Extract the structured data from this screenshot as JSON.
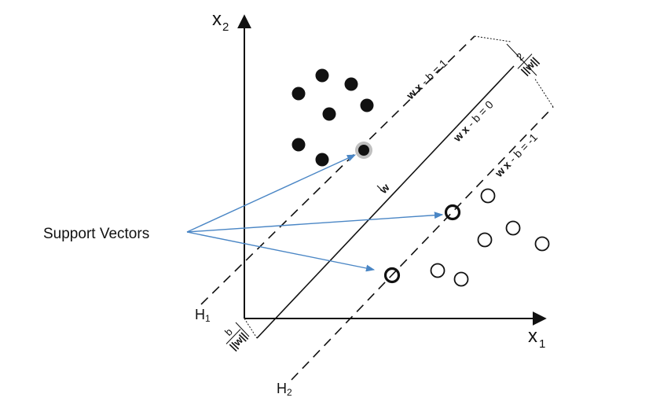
{
  "axes": {
    "x_label": "x",
    "x_sub": "1",
    "y_label": "x",
    "y_sub": "2"
  },
  "hyperplanes": {
    "h1_label": "H",
    "h1_sub": "1",
    "h2_label": "H",
    "h2_sub": "2",
    "eq_upper_w": "w",
    "eq_upper_x": "x",
    "eq_upper_rest": " - b = 1",
    "eq_mid_w": "w",
    "eq_mid_x": "x",
    "eq_mid_rest": " - b = 0",
    "eq_lower_w": "w",
    "eq_lower_x": "x",
    "eq_lower_rest": " - b = -1",
    "normal_label": "w"
  },
  "margin": {
    "numerator": "2",
    "denominator": "||w||"
  },
  "offset": {
    "numerator": "b",
    "denominator": "||w||"
  },
  "annotation": {
    "label": "Support Vectors",
    "arrow_color": "#4a86c5"
  },
  "colors": {
    "ink": "#111111",
    "support_halo": "#bfbfbf"
  }
}
